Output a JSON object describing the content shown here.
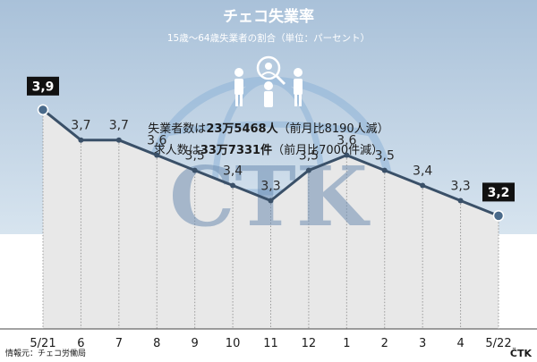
{
  "chart_data": {
    "type": "line",
    "title": "チェコ失業率",
    "subtitle": "15歳〜64歳失業者の割合（単位：パーセント）",
    "categories": [
      "5/21",
      "6",
      "7",
      "8",
      "9",
      "10",
      "11",
      "12",
      "1",
      "2",
      "3",
      "4",
      "5/22"
    ],
    "values": [
      3.9,
      3.7,
      3.7,
      3.6,
      3.5,
      3.4,
      3.3,
      3.5,
      3.6,
      3.5,
      3.4,
      3.3,
      3.2
    ],
    "value_labels": [
      "3,9",
      "3,7",
      "3,7",
      "3,6",
      "3,5",
      "3,4",
      "3,3",
      "3,5",
      "3,6",
      "3,5",
      "3,4",
      "3,3",
      "3,2"
    ],
    "highlighted_points": [
      0,
      12
    ],
    "ylim": [
      2.5,
      4.2
    ],
    "grid": "vertical",
    "colors": {
      "background_top": "#b9cde0",
      "line": "#3a5068",
      "fill": "#e8e8e8",
      "marker": "#4a6a8a"
    }
  },
  "stats": {
    "line1": {
      "prefix": "失業者数は",
      "bold": "23万5468人",
      "suffix": "（前月比8190人減）"
    },
    "line2": {
      "prefix": "求人数は",
      "bold": "33万7331件",
      "suffix": "（前月比7000件減）"
    }
  },
  "source": "情報元：チェコ労働局",
  "watermark": "CTK",
  "logo": "ČTK",
  "icon": "people-magnifier-icon"
}
